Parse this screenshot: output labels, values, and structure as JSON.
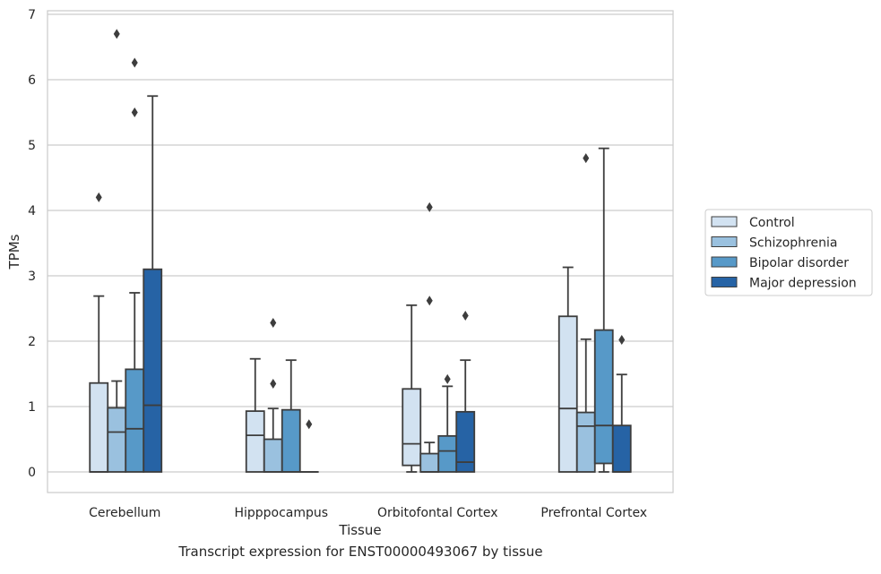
{
  "chart_data": {
    "type": "boxplot",
    "xlabel": "Tissue",
    "ylabel": "TPMs",
    "ylim": [
      -0.3,
      7.05
    ],
    "yticks": [
      0,
      1,
      2,
      3,
      4,
      5,
      6,
      7
    ],
    "grid": "horizontal",
    "legend_position": "right",
    "categories": [
      "Cerebellum",
      "Hipppocampus",
      "Orbitofontal Cortex",
      "Prefrontal Cortex"
    ],
    "series": [
      {
        "name": "Control",
        "color": "#d2e2f1",
        "boxes": [
          {
            "min": 0,
            "q1": 0,
            "median": 0,
            "q3": 1.36,
            "max": 2.69,
            "outliers": [
              4.2
            ]
          },
          {
            "min": 0,
            "q1": 0,
            "median": 0.56,
            "q3": 0.93,
            "max": 1.73,
            "outliers": []
          },
          {
            "min": 0,
            "q1": 0.1,
            "median": 0.43,
            "q3": 1.27,
            "max": 2.55,
            "outliers": []
          },
          {
            "min": 0,
            "q1": 0,
            "median": 0.97,
            "q3": 2.38,
            "max": 3.13,
            "outliers": []
          }
        ]
      },
      {
        "name": "Schizophrenia",
        "color": "#9ac1df",
        "boxes": [
          {
            "min": 0,
            "q1": 0,
            "median": 0.61,
            "q3": 0.98,
            "max": 1.39,
            "outliers": [
              6.7
            ]
          },
          {
            "min": 0,
            "q1": 0,
            "median": 0,
            "q3": 0.5,
            "max": 0.97,
            "outliers": [
              2.28,
              1.35
            ]
          },
          {
            "min": 0,
            "q1": 0,
            "median": 0,
            "q3": 0.28,
            "max": 0.45,
            "outliers": [
              4.05,
              2.62
            ]
          },
          {
            "min": 0,
            "q1": 0,
            "median": 0.7,
            "q3": 0.91,
            "max": 2.03,
            "outliers": [
              4.8
            ]
          }
        ]
      },
      {
        "name": "Bipolar disorder",
        "color": "#5799c8",
        "boxes": [
          {
            "min": 0,
            "q1": 0,
            "median": 0.66,
            "q3": 1.57,
            "max": 2.74,
            "outliers": [
              6.26,
              5.5
            ]
          },
          {
            "min": 0,
            "q1": 0,
            "median": 0,
            "q3": 0.95,
            "max": 1.71,
            "outliers": []
          },
          {
            "min": 0,
            "q1": 0,
            "median": 0.32,
            "q3": 0.55,
            "max": 1.31,
            "outliers": [
              1.42
            ]
          },
          {
            "min": 0,
            "q1": 0.13,
            "median": 0.71,
            "q3": 2.17,
            "max": 4.95,
            "outliers": []
          }
        ]
      },
      {
        "name": "Major depression",
        "color": "#2663a5",
        "boxes": [
          {
            "min": 0,
            "q1": 0,
            "median": 1.02,
            "q3": 3.1,
            "max": 5.75,
            "outliers": []
          },
          {
            "min": 0,
            "q1": 0,
            "median": 0,
            "q3": 0,
            "max": 0,
            "outliers": [
              0.73
            ]
          },
          {
            "min": 0,
            "q1": 0,
            "median": 0.15,
            "q3": 0.92,
            "max": 1.71,
            "outliers": [
              2.39
            ]
          },
          {
            "min": 0,
            "q1": 0,
            "median": 0,
            "q3": 0.71,
            "max": 1.49,
            "outliers": [
              2.02
            ]
          }
        ]
      }
    ]
  },
  "caption": "Transcript expression for ENST00000493067 by tissue"
}
